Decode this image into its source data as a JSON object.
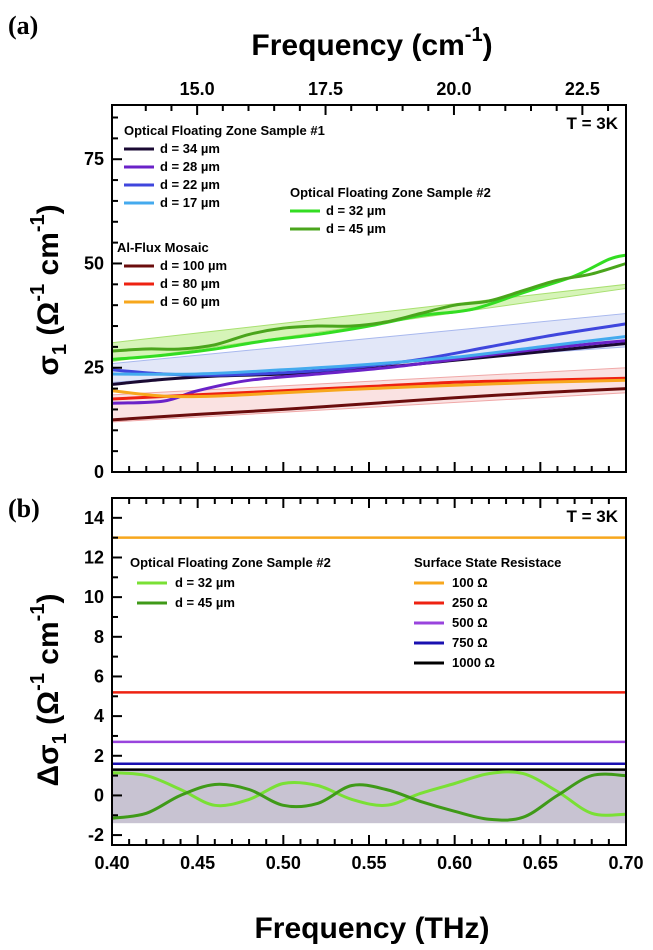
{
  "figure": {
    "top_xlabel_main": "Frequency (cm",
    "top_xlabel_sup": "-1",
    "top_xlabel_close": ")",
    "bottom_xlabel": "Frequency (THz)"
  },
  "chart_data": [
    {
      "type": "line",
      "panel_label": "(a)",
      "temperature_label": "T = 3K",
      "ylabel": {
        "sigma": "σ",
        "sub": "1",
        "open": " (Ω",
        "sup1": "-1",
        "cm": " cm",
        "sup2": "-1",
        "close": ")"
      },
      "x_unit": "THz",
      "xlim": [
        0.4,
        0.7
      ],
      "ylim": [
        0,
        88
      ],
      "yticks": [
        0,
        25,
        50,
        75
      ],
      "top_axis_ticks": [
        15.0,
        17.5,
        20.0,
        22.5
      ],
      "top_axis_tick_labels": [
        "15.0",
        "17.5",
        "20.0",
        "22.5"
      ],
      "legend_groups": [
        {
          "title": "Optical Floating Zone Sample #1",
          "entries": [
            "d = 34 µm",
            "d = 28 µm",
            "d = 22 µm",
            "d = 17 µm"
          ]
        },
        {
          "title": "Al-Flux Mosaic",
          "entries": [
            "d = 100 µm",
            "d = 80  µm",
            "d = 60  µm"
          ]
        },
        {
          "title": "Optical Floating Zone Sample #2",
          "entries": [
            "d = 32 µm",
            "d = 45 µm"
          ]
        }
      ],
      "bands": [
        {
          "color": "#c8f0a0",
          "edge": "#a8e070",
          "upper": [
            [
              0.4,
              31
            ],
            [
              0.7,
              45
            ]
          ],
          "lower": [
            [
              0.4,
              26.5
            ],
            [
              0.7,
              44
            ]
          ]
        },
        {
          "color": "#d8dff5",
          "edge": "#a8b8ee",
          "upper": [
            [
              0.4,
              26
            ],
            [
              0.7,
              38
            ]
          ],
          "lower": [
            [
              0.4,
              21.5
            ],
            [
              0.7,
              30
            ]
          ]
        },
        {
          "color": "#f8d8d8",
          "edge": "#f0a8a8",
          "upper": [
            [
              0.4,
              18.5
            ],
            [
              0.7,
              25
            ]
          ],
          "lower": [
            [
              0.4,
              12
            ],
            [
              0.7,
              19
            ]
          ]
        }
      ],
      "series": [
        {
          "name": "d = 34 µm",
          "color": "#1a0a33",
          "points": [
            [
              0.4,
              21
            ],
            [
              0.43,
              22.2
            ],
            [
              0.46,
              23
            ],
            [
              0.5,
              23.5
            ],
            [
              0.55,
              24.8
            ],
            [
              0.6,
              26.8
            ],
            [
              0.65,
              28.8
            ],
            [
              0.7,
              30.8
            ]
          ]
        },
        {
          "name": "d = 28 µm",
          "color": "#6a22c8",
          "points": [
            [
              0.4,
              16.5
            ],
            [
              0.43,
              17
            ],
            [
              0.45,
              19.5
            ],
            [
              0.48,
              22
            ],
            [
              0.52,
              23.5
            ],
            [
              0.56,
              25
            ],
            [
              0.6,
              27
            ],
            [
              0.65,
              29.5
            ],
            [
              0.7,
              31.5
            ]
          ]
        },
        {
          "name": "d = 22 µm",
          "color": "#3f46dd",
          "points": [
            [
              0.4,
              24.5
            ],
            [
              0.43,
              23.5
            ],
            [
              0.46,
              23.2
            ],
            [
              0.5,
              23.8
            ],
            [
              0.54,
              25
            ],
            [
              0.58,
              27
            ],
            [
              0.62,
              30
            ],
            [
              0.66,
              33
            ],
            [
              0.7,
              35.5
            ]
          ]
        },
        {
          "name": "d = 17 µm",
          "color": "#44aaee",
          "points": [
            [
              0.4,
              23.5
            ],
            [
              0.45,
              23.5
            ],
            [
              0.5,
              24.5
            ],
            [
              0.55,
              25.8
            ],
            [
              0.6,
              27.5
            ],
            [
              0.65,
              30
            ],
            [
              0.7,
              32.5
            ]
          ]
        },
        {
          "name": "d = 32 µm",
          "color": "#33dd22",
          "points": [
            [
              0.4,
              27
            ],
            [
              0.43,
              28
            ],
            [
              0.46,
              29.5
            ],
            [
              0.49,
              31.5
            ],
            [
              0.52,
              33
            ],
            [
              0.55,
              35
            ],
            [
              0.58,
              37.5
            ],
            [
              0.61,
              39
            ],
            [
              0.64,
              43
            ],
            [
              0.67,
              47
            ],
            [
              0.69,
              51
            ],
            [
              0.7,
              52
            ]
          ]
        },
        {
          "name": "d = 45 µm",
          "color": "#4aa51c",
          "points": [
            [
              0.4,
              29
            ],
            [
              0.42,
              29.5
            ],
            [
              0.44,
              29.5
            ],
            [
              0.46,
              30.5
            ],
            [
              0.48,
              33
            ],
            [
              0.5,
              34.5
            ],
            [
              0.52,
              35
            ],
            [
              0.54,
              35
            ],
            [
              0.56,
              36
            ],
            [
              0.58,
              38
            ],
            [
              0.6,
              40
            ],
            [
              0.62,
              41
            ],
            [
              0.64,
              43.5
            ],
            [
              0.66,
              46
            ],
            [
              0.68,
              47.5
            ],
            [
              0.7,
              50
            ]
          ]
        },
        {
          "name": "d = 100 µm",
          "color": "#6b0d0d",
          "points": [
            [
              0.4,
              12.5
            ],
            [
              0.45,
              13.8
            ],
            [
              0.5,
              15
            ],
            [
              0.55,
              16.4
            ],
            [
              0.6,
              17.8
            ],
            [
              0.65,
              19
            ],
            [
              0.7,
              20
            ]
          ]
        },
        {
          "name": "d = 80  µm",
          "color": "#ee2211",
          "points": [
            [
              0.4,
              17.5
            ],
            [
              0.45,
              18.5
            ],
            [
              0.5,
              19.5
            ],
            [
              0.55,
              20.5
            ],
            [
              0.6,
              21.5
            ],
            [
              0.65,
              22
            ],
            [
              0.7,
              22.5
            ]
          ]
        },
        {
          "name": "d = 60  µm",
          "color": "#f7a71d",
          "points": [
            [
              0.4,
              19.5
            ],
            [
              0.43,
              18.2
            ],
            [
              0.46,
              18.2
            ],
            [
              0.5,
              19
            ],
            [
              0.55,
              20
            ],
            [
              0.6,
              20.8
            ],
            [
              0.65,
              21.5
            ],
            [
              0.7,
              22
            ]
          ]
        }
      ]
    },
    {
      "type": "line",
      "panel_label": "(b)",
      "temperature_label": "T = 3K",
      "ylabel": {
        "delta": "Δσ",
        "sub": "1",
        "open": " (Ω",
        "sup1": "-1",
        "cm": " cm",
        "sup2": "-1",
        "close": ")"
      },
      "x_unit": "THz",
      "xlim": [
        0.4,
        0.7
      ],
      "xticks": [
        0.4,
        0.45,
        0.5,
        0.55,
        0.6,
        0.65,
        0.7
      ],
      "xtick_labels": [
        "0.40",
        "0.45",
        "0.50",
        "0.55",
        "0.60",
        "0.65",
        "0.70"
      ],
      "ylim": [
        -2.5,
        15
      ],
      "yticks": [
        -2,
        0,
        2,
        4,
        6,
        8,
        10,
        12,
        14
      ],
      "ytick_labels": [
        "-2",
        "0",
        "2",
        "4",
        "6",
        "8",
        "10",
        "12",
        "14"
      ],
      "legend_groups": [
        {
          "title": "Optical Floating Zone Sample #2",
          "entries": [
            "d = 32 µm",
            "d = 45 µm"
          ]
        },
        {
          "title": "Surface State Resistace",
          "entries": [
            "100 Ω",
            "250 Ω",
            "500 Ω",
            "750 Ω",
            "1000 Ω"
          ]
        }
      ],
      "shaded_band": {
        "ymin": -1.4,
        "ymax": 1.3,
        "color": "#c8c3d2"
      },
      "hlines": [
        {
          "name": "100 Ω",
          "y": 13.0,
          "color": "#f7a71d"
        },
        {
          "name": "250 Ω",
          "y": 5.2,
          "color": "#ee2211"
        },
        {
          "name": "500 Ω",
          "y": 2.7,
          "color": "#9944dd"
        },
        {
          "name": "750 Ω",
          "y": 1.6,
          "color": "#1a10b0"
        },
        {
          "name": "1000 Ω",
          "y": 1.3,
          "color": "#000000"
        }
      ],
      "series": [
        {
          "name": "d = 32 µm",
          "color": "#7ae035",
          "points": [
            [
              0.4,
              1.15
            ],
            [
              0.42,
              1.0
            ],
            [
              0.44,
              0.3
            ],
            [
              0.46,
              -0.5
            ],
            [
              0.48,
              -0.2
            ],
            [
              0.5,
              0.6
            ],
            [
              0.52,
              0.5
            ],
            [
              0.54,
              -0.2
            ],
            [
              0.56,
              -0.5
            ],
            [
              0.58,
              0.1
            ],
            [
              0.6,
              0.6
            ],
            [
              0.62,
              1.1
            ],
            [
              0.64,
              1.1
            ],
            [
              0.66,
              0.2
            ],
            [
              0.68,
              -0.9
            ],
            [
              0.7,
              -0.95
            ]
          ]
        },
        {
          "name": "d = 45 µm",
          "color": "#3f9a18",
          "points": [
            [
              0.4,
              -1.15
            ],
            [
              0.42,
              -0.9
            ],
            [
              0.44,
              0.0
            ],
            [
              0.46,
              0.55
            ],
            [
              0.48,
              0.3
            ],
            [
              0.5,
              -0.5
            ],
            [
              0.52,
              -0.4
            ],
            [
              0.54,
              0.5
            ],
            [
              0.56,
              0.3
            ],
            [
              0.58,
              -0.3
            ],
            [
              0.6,
              -0.8
            ],
            [
              0.62,
              -1.2
            ],
            [
              0.64,
              -1.1
            ],
            [
              0.66,
              0.0
            ],
            [
              0.68,
              1.0
            ],
            [
              0.7,
              1.0
            ]
          ]
        }
      ]
    }
  ]
}
